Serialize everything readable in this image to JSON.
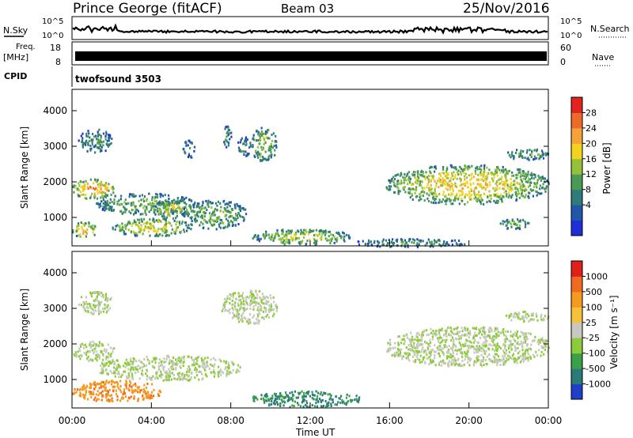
{
  "header": {
    "site": "Prince George (fitACF)",
    "beam": "Beam 03",
    "date": "25/Nov/2016"
  },
  "top_panels": {
    "nsky_label": "N.Sky",
    "nsky_ticks": [
      "10^5",
      "10^0"
    ],
    "nsearch_label": "N.Search",
    "nsearch_ticks": [
      "10^5",
      "10^0"
    ],
    "freq_label_1": "Freq.",
    "freq_label_2": "[MHz]",
    "freq_ticks": [
      "18",
      "8"
    ],
    "nave_label": "Nave",
    "nave_ticks": [
      "60",
      "0"
    ],
    "cpid_label": "CPID",
    "cpid_value": "twofsound 3503"
  },
  "chart_data": [
    {
      "type": "heatmap",
      "name": "power",
      "ylabel": "Slant Range [km]",
      "yticks": [
        "4000",
        "3000",
        "2000",
        "1000"
      ],
      "ylim": [
        200,
        4600
      ],
      "xlim": [
        0,
        24
      ],
      "colorbar": {
        "label": "Power [dB]",
        "ticks": [
          "28",
          "24",
          "20",
          "16",
          "12",
          "8",
          "4"
        ],
        "colors": [
          "#1f2fd8",
          "#2156a8",
          "#2f7a7a",
          "#4a9a55",
          "#93c23a",
          "#f2d21e",
          "#f5a23a",
          "#ee6a2a",
          "#e0251f"
        ]
      },
      "blobs": [
        {
          "t0": 0.0,
          "t1": 2.1,
          "r0": 1550,
          "r1": 2100,
          "level": 0.75
        },
        {
          "t0": 0.3,
          "t1": 2.0,
          "r0": 2850,
          "r1": 3500,
          "level": 0.35
        },
        {
          "t0": 0.0,
          "t1": 1.2,
          "r0": 450,
          "r1": 900,
          "level": 0.7
        },
        {
          "t0": 1.2,
          "t1": 6.2,
          "r0": 1100,
          "r1": 1700,
          "level": 0.45
        },
        {
          "t0": 2.0,
          "t1": 6.0,
          "r0": 500,
          "r1": 1000,
          "level": 0.6
        },
        {
          "t0": 4.0,
          "t1": 6.0,
          "r0": 1000,
          "r1": 1500,
          "level": 0.6
        },
        {
          "t0": 5.5,
          "t1": 8.8,
          "r0": 700,
          "r1": 1500,
          "level": 0.45
        },
        {
          "t0": 7.5,
          "t1": 8.0,
          "r0": 3000,
          "r1": 3600,
          "level": 0.35
        },
        {
          "t0": 8.3,
          "t1": 9.0,
          "r0": 2700,
          "r1": 3300,
          "level": 0.35
        },
        {
          "t0": 9.0,
          "t1": 10.3,
          "r0": 2600,
          "r1": 3550,
          "level": 0.5
        },
        {
          "t0": 5.5,
          "t1": 6.2,
          "r0": 2700,
          "r1": 3200,
          "level": 0.3
        },
        {
          "t0": 9.0,
          "t1": 14.0,
          "r0": 250,
          "r1": 700,
          "level": 0.55
        },
        {
          "t0": 14.0,
          "t1": 20.0,
          "r0": 200,
          "r1": 420,
          "level": 0.35
        },
        {
          "t0": 15.8,
          "t1": 24.0,
          "r0": 1400,
          "r1": 2500,
          "level": 0.65
        },
        {
          "t0": 21.8,
          "t1": 24.0,
          "r0": 2650,
          "r1": 2950,
          "level": 0.4
        },
        {
          "t0": 21.5,
          "t1": 23.0,
          "r0": 700,
          "r1": 1000,
          "level": 0.45
        }
      ]
    },
    {
      "type": "heatmap",
      "name": "velocity",
      "ylabel": "Slant Range [km]",
      "yticks": [
        "4000",
        "3000",
        "2000",
        "1000"
      ],
      "ylim": [
        200,
        4600
      ],
      "xlim": [
        0,
        24
      ],
      "xticks": [
        "00:00",
        "04:00",
        "08:00",
        "12:00",
        "16:00",
        "20:00",
        "00:00"
      ],
      "xlabel": "Time UT",
      "colorbar": {
        "label": "Velocity [m s⁻¹]",
        "ticks": [
          "1000",
          "500",
          "100",
          "25",
          "-25",
          "-100",
          "-500",
          "-1000"
        ],
        "colors": [
          "#1f3fc8",
          "#2a7a7a",
          "#3aa04a",
          "#8ccc3a",
          "#c8c8c0",
          "#f5c03a",
          "#f59a20",
          "#ee6a20",
          "#e0201a"
        ]
      },
      "blobs": [
        {
          "t0": 0.0,
          "t1": 2.1,
          "r0": 1550,
          "r1": 2100,
          "level": 0.45
        },
        {
          "t0": 0.3,
          "t1": 2.0,
          "r0": 2850,
          "r1": 3500,
          "level": 0.45
        },
        {
          "t0": 0.0,
          "t1": 4.5,
          "r0": 400,
          "r1": 1000,
          "level": 0.75
        },
        {
          "t0": 1.2,
          "t1": 8.5,
          "r0": 1000,
          "r1": 1700,
          "level": 0.45
        },
        {
          "t0": 7.5,
          "t1": 10.3,
          "r0": 2600,
          "r1": 3550,
          "level": 0.45
        },
        {
          "t0": 9.0,
          "t1": 14.5,
          "r0": 250,
          "r1": 700,
          "level": 0.2
        },
        {
          "t0": 15.8,
          "t1": 24.0,
          "r0": 1400,
          "r1": 2500,
          "level": 0.45
        },
        {
          "t0": 21.8,
          "t1": 24.0,
          "r0": 2650,
          "r1": 2950,
          "level": 0.45
        }
      ]
    }
  ]
}
